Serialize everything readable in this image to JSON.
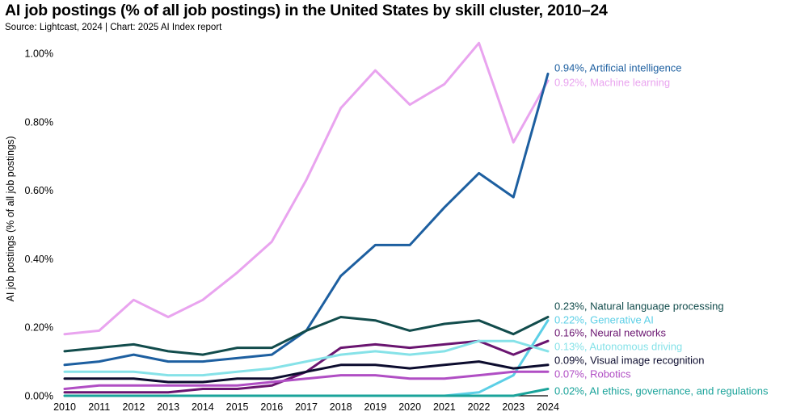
{
  "header": {
    "title": "AI job postings (% of all job postings) in the United States by skill cluster, 2010–24",
    "subtitle": "Source: Lightcast, 2024 | Chart: 2025 AI Index report"
  },
  "chart_data": {
    "type": "line",
    "title": "AI job postings (% of all job postings) in the United States by skill cluster, 2010–24",
    "ylabel": "AI job postings (% of all job postings)",
    "xlabel": "",
    "x": [
      2010,
      2011,
      2012,
      2013,
      2014,
      2015,
      2016,
      2017,
      2018,
      2019,
      2020,
      2021,
      2022,
      2023,
      2024
    ],
    "ylim": [
      0,
      1.0
    ],
    "yticks": [
      0,
      0.2,
      0.4,
      0.6,
      0.8,
      1.0
    ],
    "ytick_labels": [
      "0.00%",
      "0.20%",
      "0.40%",
      "0.60%",
      "0.80%",
      "1.00%"
    ],
    "grid": false,
    "legend": "inline labels at right end of lines",
    "series": [
      {
        "name": "Machine learning",
        "label": "0.92%, Machine learning",
        "color": "#e9a4ef",
        "values": [
          0.18,
          0.19,
          0.28,
          0.23,
          0.28,
          0.36,
          0.45,
          0.63,
          0.84,
          0.95,
          0.85,
          0.91,
          1.03,
          0.74,
          0.92
        ]
      },
      {
        "name": "Artificial intelligence",
        "label": "0.94%, Artificial intelligence",
        "color": "#1d5fa0",
        "values": [
          0.09,
          0.1,
          0.12,
          0.1,
          0.1,
          0.11,
          0.12,
          0.19,
          0.35,
          0.44,
          0.44,
          0.55,
          0.65,
          0.58,
          0.94
        ]
      },
      {
        "name": "Natural language processing",
        "label": "0.23%, Natural language processing",
        "color": "#124c4c",
        "values": [
          0.13,
          0.14,
          0.15,
          0.13,
          0.12,
          0.14,
          0.14,
          0.19,
          0.23,
          0.22,
          0.19,
          0.21,
          0.22,
          0.18,
          0.23
        ]
      },
      {
        "name": "Generative AI",
        "label": "0.22%, Generative AI",
        "color": "#5ccfe6",
        "values": [
          0.0,
          0.0,
          0.0,
          0.0,
          0.0,
          0.0,
          0.0,
          0.0,
          0.0,
          0.0,
          0.0,
          0.0,
          0.01,
          0.06,
          0.22
        ]
      },
      {
        "name": "Neural networks",
        "label": "0.16%, Neural networks",
        "color": "#6a1570",
        "values": [
          0.01,
          0.01,
          0.01,
          0.01,
          0.02,
          0.02,
          0.03,
          0.07,
          0.14,
          0.15,
          0.14,
          0.15,
          0.16,
          0.12,
          0.16
        ]
      },
      {
        "name": "Autonomous driving",
        "label": "0.13%, Autonomous driving",
        "color": "#86e2e8",
        "values": [
          0.07,
          0.07,
          0.07,
          0.06,
          0.06,
          0.07,
          0.08,
          0.1,
          0.12,
          0.13,
          0.12,
          0.13,
          0.16,
          0.16,
          0.13
        ]
      },
      {
        "name": "Visual image recognition",
        "label": "0.09%, Visual image recognition",
        "color": "#0c0c2e",
        "values": [
          0.05,
          0.05,
          0.05,
          0.04,
          0.04,
          0.05,
          0.05,
          0.07,
          0.09,
          0.09,
          0.08,
          0.09,
          0.1,
          0.08,
          0.09
        ]
      },
      {
        "name": "Robotics",
        "label": "0.07%, Robotics",
        "color": "#b04ec4",
        "values": [
          0.02,
          0.03,
          0.03,
          0.03,
          0.03,
          0.03,
          0.04,
          0.05,
          0.06,
          0.06,
          0.05,
          0.05,
          0.06,
          0.07,
          0.07
        ]
      },
      {
        "name": "AI ethics, governance, and regulations",
        "label": "0.02%, AI ethics, governance, and regulations",
        "color": "#1aa39a",
        "values": [
          0.0,
          0.0,
          0.0,
          0.0,
          0.0,
          0.0,
          0.0,
          0.0,
          0.0,
          0.0,
          0.0,
          0.0,
          0.0,
          0.0,
          0.02
        ]
      }
    ]
  }
}
